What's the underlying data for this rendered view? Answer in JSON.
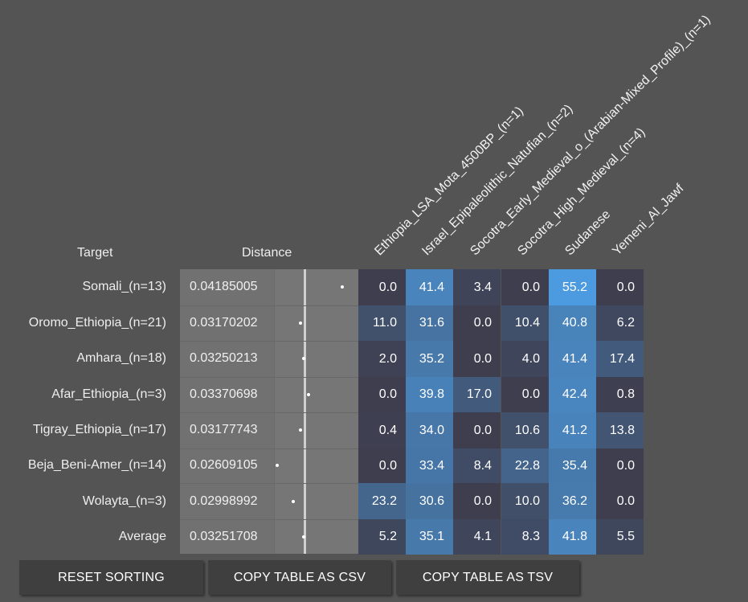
{
  "headers": {
    "target": "Target",
    "distance": "Distance",
    "populations": [
      "Ethiopia_LSA_Mota_4500BP_(n=1)",
      "Israel_Epipaleolithic_Natufian_(n=2)",
      "Socotra_Early_Medieval_o_(Arabian-Mixed_Profile)_(n=1)",
      "Socotra_High_Medieval_(n=4)",
      "Sudanese",
      "Yemeni_Al_Jawf"
    ]
  },
  "rows": [
    {
      "target": "Somali_(n=13)",
      "distance": "0.04185005",
      "values": [
        "0.0",
        "41.4",
        "3.4",
        "0.0",
        "55.2",
        "0.0"
      ]
    },
    {
      "target": "Oromo_Ethiopia_(n=21)",
      "distance": "0.03170202",
      "values": [
        "11.0",
        "31.6",
        "0.0",
        "10.4",
        "40.8",
        "6.2"
      ]
    },
    {
      "target": "Amhara_(n=18)",
      "distance": "0.03250213",
      "values": [
        "2.0",
        "35.2",
        "0.0",
        "4.0",
        "41.4",
        "17.4"
      ]
    },
    {
      "target": "Afar_Ethiopia_(n=3)",
      "distance": "0.03370698",
      "values": [
        "0.0",
        "39.8",
        "17.0",
        "0.0",
        "42.4",
        "0.8"
      ]
    },
    {
      "target": "Tigray_Ethiopia_(n=17)",
      "distance": "0.03177743",
      "values": [
        "0.4",
        "34.0",
        "0.0",
        "10.6",
        "41.2",
        "13.8"
      ]
    },
    {
      "target": "Beja_Beni-Amer_(n=14)",
      "distance": "0.02609105",
      "values": [
        "0.0",
        "33.4",
        "8.4",
        "22.8",
        "35.4",
        "0.0"
      ]
    },
    {
      "target": "Wolayta_(n=3)",
      "distance": "0.02998992",
      "values": [
        "23.2",
        "30.6",
        "0.0",
        "10.0",
        "36.2",
        "0.0"
      ]
    },
    {
      "target": "Average",
      "distance": "0.03251708",
      "values": [
        "5.2",
        "35.1",
        "4.1",
        "8.3",
        "41.8",
        "5.5"
      ]
    }
  ],
  "buttons": {
    "reset_sorting": "RESET SORTING",
    "copy_csv": "COPY TABLE AS CSV",
    "copy_tsv": "COPY TABLE AS TSV"
  },
  "colors": {
    "background": "#545454",
    "heat_low": "#3e3e4f",
    "heat_high": "#4c9be0",
    "button": "#3f3f3f"
  }
}
